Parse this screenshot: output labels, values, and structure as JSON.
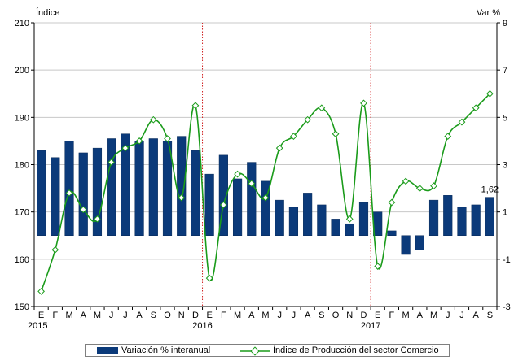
{
  "chart_data": {
    "type": "bar+line",
    "left_axis_label": "Índice",
    "right_axis_label": "Var %",
    "left_ylim": [
      150,
      210
    ],
    "left_ticks": [
      150,
      160,
      170,
      180,
      190,
      200,
      210
    ],
    "right_ylim": [
      -3,
      9
    ],
    "right_ticks": [
      -3,
      -1,
      1,
      3,
      5,
      7,
      9
    ],
    "month_labels": [
      "E",
      "F",
      "M",
      "A",
      "M",
      "J",
      "J",
      "A",
      "S",
      "O",
      "N",
      "D",
      "E",
      "F",
      "M",
      "A",
      "M",
      "J",
      "J",
      "A",
      "S",
      "O",
      "N",
      "D",
      "E",
      "F",
      "M",
      "A",
      "M",
      "J",
      "J",
      "A",
      "S"
    ],
    "year_labels": [
      {
        "index": 0,
        "label": "2015"
      },
      {
        "index": 12,
        "label": "2016"
      },
      {
        "index": 24,
        "label": "2017"
      }
    ],
    "year_dividers": [
      12,
      24
    ],
    "series": [
      {
        "name": "Variación % interanual",
        "kind": "bar",
        "axis": "right",
        "color": "#0b3a7a",
        "values": [
          3.6,
          3.3,
          4.0,
          3.5,
          3.7,
          4.1,
          4.3,
          4.0,
          4.1,
          4.0,
          4.2,
          3.6,
          2.6,
          3.4,
          2.4,
          3.1,
          2.3,
          1.5,
          1.2,
          1.8,
          1.3,
          0.7,
          0.5,
          1.4,
          1.0,
          0.2,
          -0.8,
          -0.6,
          1.5,
          1.7,
          1.2,
          1.3,
          1.62
        ]
      },
      {
        "name": "Índice de Producción del sector Comercio",
        "kind": "line",
        "axis": "left",
        "color": "#1a9b1a",
        "values": [
          153.2,
          162.0,
          174.0,
          170.5,
          168.5,
          180.5,
          183.5,
          185.0,
          189.5,
          185.5,
          173.0,
          192.5,
          156.0,
          171.5,
          178.0,
          176.0,
          173.0,
          183.5,
          186.0,
          189.5,
          192.0,
          186.5,
          168.5,
          193.0,
          158.5,
          172.0,
          176.5,
          175.0,
          175.5,
          186.0,
          189.0,
          192.0,
          195.0
        ]
      }
    ],
    "data_labels": [
      {
        "index": 32,
        "text": "1,62"
      }
    ]
  }
}
